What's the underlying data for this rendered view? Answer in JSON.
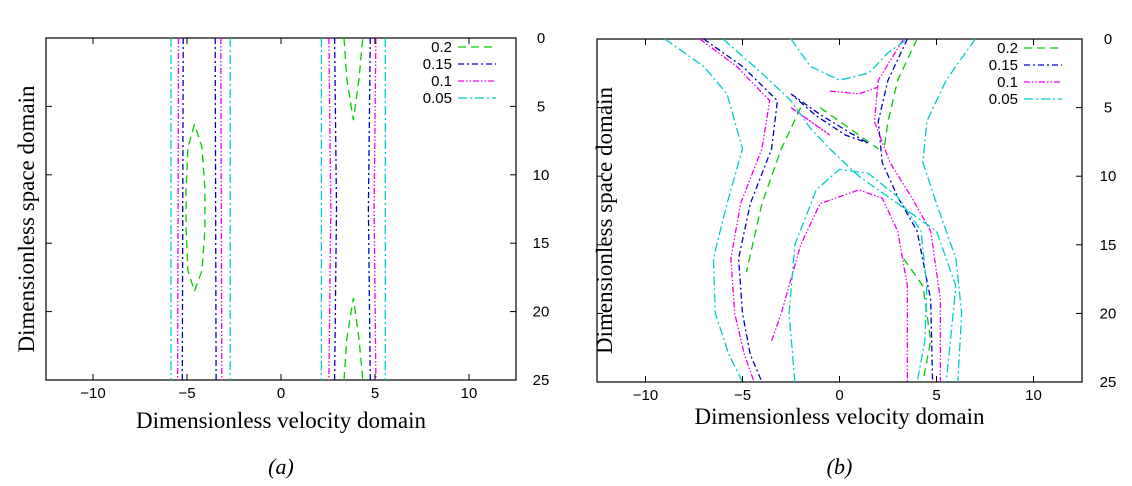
{
  "chart_data": [
    {
      "type": "contour",
      "caption": "(a)",
      "xlabel": "Dimensionless velocity domain",
      "ylabel": "Dimensionless space domain",
      "xlim": [
        -12.5,
        12.5
      ],
      "ylim": [
        0,
        25
      ],
      "y_axis_side": "right",
      "y_inverted": true,
      "xticks": [
        -10,
        -5,
        0,
        5,
        10
      ],
      "yticks": [
        0,
        5,
        10,
        15,
        20,
        25
      ],
      "legend_position": "top-right",
      "series": [
        {
          "name": "0.2",
          "color": "#00cc00",
          "dash": "8,5",
          "contours": [
            [
              [
                -4.6,
                6.3
              ],
              [
                -4.95,
                8
              ],
              [
                -5.05,
                11
              ],
              [
                -5.05,
                14
              ],
              [
                -4.95,
                17
              ],
              [
                -4.6,
                18.5
              ],
              [
                -4.2,
                17
              ],
              [
                -4.05,
                14
              ],
              [
                -4.05,
                11
              ],
              [
                -4.2,
                8
              ],
              [
                -4.6,
                6.3
              ]
            ],
            [
              [
                3.35,
                0
              ],
              [
                3.5,
                3
              ],
              [
                3.85,
                6
              ],
              [
                4.15,
                3
              ],
              [
                4.35,
                0
              ]
            ],
            [
              [
                3.35,
                25
              ],
              [
                3.5,
                22
              ],
              [
                3.85,
                19
              ],
              [
                4.15,
                22
              ],
              [
                4.35,
                25
              ]
            ]
          ]
        },
        {
          "name": "0.15",
          "color": "#0000c0",
          "dash": "6,3,2,3",
          "contours": [
            [
              [
                -5.2,
                0
              ],
              [
                -5.25,
                25
              ]
            ],
            [
              [
                -3.5,
                0
              ],
              [
                -3.45,
                25
              ]
            ],
            [
              [
                2.85,
                0
              ],
              [
                2.95,
                12.5
              ],
              [
                2.85,
                25
              ]
            ],
            [
              [
                4.75,
                0
              ],
              [
                4.65,
                12.5
              ],
              [
                4.75,
                25
              ]
            ]
          ]
        },
        {
          "name": "0.1",
          "color": "#ee00ee",
          "dash": "6,2,1.5,2,1.5,2",
          "contours": [
            [
              [
                -5.45,
                0
              ],
              [
                -5.5,
                25
              ]
            ],
            [
              [
                -3.2,
                0
              ],
              [
                -3.15,
                25
              ]
            ],
            [
              [
                2.55,
                0
              ],
              [
                2.65,
                12.5
              ],
              [
                2.55,
                25
              ]
            ],
            [
              [
                5.05,
                0
              ],
              [
                4.95,
                12.5
              ],
              [
                5.05,
                25
              ]
            ]
          ]
        },
        {
          "name": "0.05",
          "color": "#00cccc",
          "dash": "9,3,2,3",
          "contours": [
            [
              [
                -5.85,
                0
              ],
              [
                -5.85,
                25
              ]
            ],
            [
              [
                -2.7,
                0
              ],
              [
                -2.7,
                25
              ]
            ],
            [
              [
                2.15,
                0
              ],
              [
                2.15,
                25
              ]
            ],
            [
              [
                5.55,
                0
              ],
              [
                5.55,
                25
              ]
            ]
          ]
        }
      ]
    },
    {
      "type": "contour",
      "caption": "(b)",
      "xlabel": "Dimensionless velocity domain",
      "ylabel": "Dimensionless space domain",
      "xlim": [
        -12.5,
        12.5
      ],
      "ylim": [
        0,
        25
      ],
      "y_axis_side": "right",
      "y_inverted": true,
      "xticks": [
        -10,
        -5,
        0,
        5,
        10
      ],
      "yticks": [
        0,
        5,
        10,
        15,
        20,
        25
      ],
      "legend_position": "top-right",
      "series": [
        {
          "name": "0.2",
          "color": "#00cc00",
          "dash": "8,5",
          "contours": [
            [
              [
                -2,
                5
              ],
              [
                -3,
                8
              ],
              [
                -4,
                12
              ],
              [
                -4.8,
                17
              ]
            ],
            [
              [
                4,
                0
              ],
              [
                3,
                3
              ],
              [
                2.5,
                6
              ],
              [
                2.3,
                8
              ]
            ],
            [
              [
                -1,
                5
              ],
              [
                0,
                6
              ],
              [
                1,
                7
              ],
              [
                2,
                8
              ]
            ],
            [
              [
                3.3,
                16
              ],
              [
                4.3,
                18
              ],
              [
                4.7,
                22
              ],
              [
                4.3,
                25
              ]
            ]
          ]
        },
        {
          "name": "0.15",
          "color": "#0000c0",
          "dash": "6,3,2,3",
          "contours": [
            [
              [
                -7,
                0
              ],
              [
                -5,
                2
              ],
              [
                -3.2,
                4.5
              ],
              [
                -3.5,
                8
              ],
              [
                -4.6,
                12
              ],
              [
                -5.2,
                16
              ],
              [
                -5,
                20
              ],
              [
                -4.6,
                23
              ],
              [
                -4,
                25
              ]
            ],
            [
              [
                3.5,
                0
              ],
              [
                2.5,
                3
              ],
              [
                2,
                6
              ],
              [
                2.2,
                9
              ],
              [
                3,
                11.5
              ],
              [
                4,
                14
              ],
              [
                4.7,
                19
              ],
              [
                4.8,
                25
              ]
            ],
            [
              [
                -2.5,
                4
              ],
              [
                -1,
                5.5
              ],
              [
                0.5,
                6.8
              ],
              [
                1.5,
                7.6
              ],
              [
                0.3,
                7
              ],
              [
                -1.2,
                5.6
              ],
              [
                -2.5,
                4
              ]
            ]
          ]
        },
        {
          "name": "0.1",
          "color": "#ee00ee",
          "dash": "6,2,1.5,2,1.5,2",
          "contours": [
            [
              [
                -7.2,
                0
              ],
              [
                -5.3,
                2
              ],
              [
                -3.6,
                4.5
              ],
              [
                -4,
                8
              ],
              [
                -5.1,
                12
              ],
              [
                -5.6,
                16
              ],
              [
                -5.4,
                20
              ],
              [
                -4.9,
                23
              ],
              [
                -4.4,
                25
              ]
            ],
            [
              [
                3.3,
                0
              ],
              [
                2,
                3
              ],
              [
                1.8,
                6
              ],
              [
                2.6,
                9
              ],
              [
                3.7,
                11.5
              ],
              [
                4.7,
                14
              ],
              [
                5.2,
                19
              ],
              [
                5.2,
                25
              ]
            ],
            [
              [
                -3.5,
                22
              ],
              [
                -3,
                20
              ],
              [
                -2,
                15
              ],
              [
                -1,
                12
              ],
              [
                1,
                11
              ],
              [
                2.2,
                11.6
              ],
              [
                3,
                14
              ],
              [
                3.5,
                18
              ],
              [
                3.5,
                25
              ]
            ],
            [
              [
                -0.5,
                3.8
              ],
              [
                1,
                4
              ],
              [
                2,
                3.5
              ]
            ],
            [
              [
                -2.5,
                5
              ],
              [
                -1.5,
                6
              ],
              [
                -0.5,
                7
              ],
              [
                -2.5,
                5
              ]
            ]
          ]
        },
        {
          "name": "0.05",
          "color": "#00cccc",
          "dash": "9,3,2,3",
          "contours": [
            [
              [
                -9,
                0
              ],
              [
                -7,
                2
              ],
              [
                -5.8,
                4
              ],
              [
                -5,
                8
              ],
              [
                -5.8,
                12
              ],
              [
                -6.5,
                16
              ],
              [
                -6.4,
                20
              ],
              [
                -5.7,
                23
              ],
              [
                -5,
                25
              ]
            ],
            [
              [
                -6,
                0
              ],
              [
                -4,
                2.5
              ],
              [
                -2.5,
                4.5
              ],
              [
                -1.5,
                6.5
              ],
              [
                -0.5,
                8
              ],
              [
                1,
                10
              ],
              [
                3,
                12
              ],
              [
                5,
                14
              ],
              [
                6,
                18
              ],
              [
                5.5,
                25
              ]
            ],
            [
              [
                -2.5,
                0
              ],
              [
                -1.5,
                2
              ],
              [
                0,
                3
              ],
              [
                1.5,
                2.5
              ],
              [
                2.5,
                1
              ],
              [
                3.5,
                0
              ]
            ],
            [
              [
                7,
                0
              ],
              [
                5.5,
                3
              ],
              [
                4.5,
                6
              ],
              [
                4.3,
                9
              ],
              [
                5,
                12
              ],
              [
                6,
                16
              ],
              [
                6.3,
                20
              ],
              [
                6.1,
                25
              ]
            ],
            [
              [
                -2.3,
                25
              ],
              [
                -2.6,
                20
              ],
              [
                -2.3,
                15
              ],
              [
                -1.2,
                11
              ],
              [
                0,
                9.5
              ],
              [
                1.5,
                9.8
              ],
              [
                3,
                11.5
              ],
              [
                4.2,
                14
              ],
              [
                4.5,
                18
              ],
              [
                4.4,
                22
              ],
              [
                4,
                25
              ]
            ]
          ]
        }
      ]
    }
  ]
}
